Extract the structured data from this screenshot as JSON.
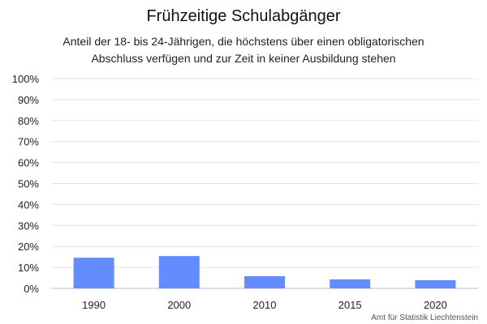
{
  "chart_data": {
    "type": "bar",
    "title": "Frühzeitige Schulabgänger",
    "subtitle": [
      "Anteil der 18- bis 24-Jährigen, die höchstens über einen obligatorischen",
      "Abschluss verfügen und zur Zeit in keiner Ausbildung stehen"
    ],
    "categories": [
      "1990",
      "2000",
      "2010",
      "2015",
      "2020"
    ],
    "values": [
      14.6,
      15.4,
      5.8,
      4.3,
      3.9
    ],
    "ylim": [
      0,
      100
    ],
    "yticks": [
      "0%",
      "10%",
      "20%",
      "30%",
      "40%",
      "50%",
      "60%",
      "70%",
      "80%",
      "90%",
      "100%"
    ],
    "xlabel": "",
    "ylabel": "",
    "grid": true,
    "bar_color": "#638dff",
    "source": "Amt für Statistik Liechtenstein"
  }
}
